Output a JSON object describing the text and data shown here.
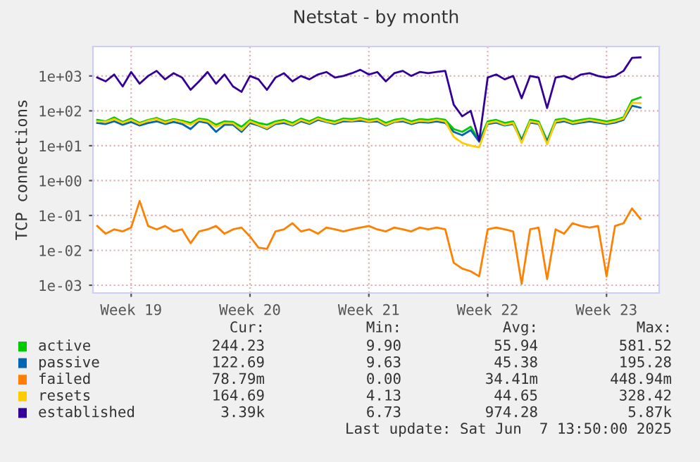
{
  "chart_data": {
    "type": "line",
    "title": "Netstat - by month",
    "ylabel": "TCP connections",
    "log": "y",
    "categories": [
      null,
      null,
      null,
      null,
      "Week 19",
      null,
      null,
      null,
      null,
      null,
      null,
      null,
      null,
      null,
      null,
      null,
      null,
      null,
      "Week 20",
      null,
      null,
      null,
      null,
      null,
      null,
      null,
      null,
      null,
      null,
      null,
      null,
      null,
      "Week 21",
      null,
      null,
      null,
      null,
      null,
      null,
      null,
      null,
      null,
      null,
      null,
      null,
      null,
      "Week 22",
      null,
      null,
      null,
      null,
      null,
      null,
      null,
      null,
      null,
      null,
      null,
      null,
      null,
      "Week 23",
      null,
      null,
      null,
      null
    ],
    "ylim": [
      0.0006,
      7000
    ],
    "yticks": [
      {
        "value": 0.001,
        "label": "1e-03"
      },
      {
        "value": 0.01,
        "label": "1e-02"
      },
      {
        "value": 0.1,
        "label": "1e-01"
      },
      {
        "value": 1,
        "label": "1e+00"
      },
      {
        "value": 10,
        "label": "1e+01"
      },
      {
        "value": 100,
        "label": "1e+02"
      },
      {
        "value": 1000,
        "label": "1e+03"
      }
    ],
    "grid": true,
    "legend": "bottom",
    "series": [
      {
        "name": "active",
        "color": "#00cc00",
        "values": [
          55,
          50,
          65,
          48,
          60,
          45,
          55,
          62,
          50,
          58,
          52,
          45,
          60,
          55,
          40,
          50,
          48,
          35,
          55,
          45,
          40,
          50,
          55,
          45,
          60,
          50,
          65,
          55,
          50,
          60,
          58,
          62,
          55,
          60,
          45,
          55,
          60,
          50,
          58,
          55,
          60,
          55,
          30,
          25,
          35,
          14,
          50,
          55,
          45,
          50,
          15,
          55,
          50,
          14,
          55,
          60,
          50,
          55,
          60,
          55,
          50,
          55,
          65,
          200,
          244
        ]
      },
      {
        "name": "passive",
        "color": "#0066b3",
        "values": [
          45,
          42,
          50,
          40,
          48,
          38,
          45,
          50,
          42,
          48,
          42,
          30,
          50,
          45,
          25,
          40,
          40,
          25,
          45,
          38,
          30,
          42,
          45,
          38,
          50,
          42,
          55,
          48,
          42,
          50,
          50,
          52,
          48,
          50,
          38,
          48,
          50,
          42,
          48,
          46,
          50,
          45,
          25,
          20,
          28,
          13,
          42,
          46,
          38,
          42,
          14,
          46,
          42,
          13,
          46,
          50,
          42,
          46,
          50,
          46,
          42,
          46,
          55,
          140,
          123
        ]
      },
      {
        "name": "failed",
        "color": "#ff8000",
        "values": [
          0.05,
          0.03,
          0.04,
          0.035,
          0.045,
          0.26,
          0.05,
          0.04,
          0.05,
          0.035,
          0.04,
          0.016,
          0.035,
          0.04,
          0.05,
          0.03,
          0.04,
          0.045,
          0.025,
          0.012,
          0.011,
          0.035,
          0.04,
          0.06,
          0.035,
          0.04,
          0.03,
          0.045,
          0.04,
          0.035,
          0.04,
          0.045,
          0.05,
          0.04,
          0.035,
          0.045,
          0.04,
          0.035,
          0.045,
          0.04,
          0.045,
          0.04,
          0.0044,
          0.003,
          0.0025,
          0.0018,
          0.04,
          0.045,
          0.04,
          0.035,
          0.0011,
          0.04,
          0.045,
          0.0015,
          0.04,
          0.03,
          0.06,
          0.05,
          0.045,
          0.05,
          0.0018,
          0.05,
          0.06,
          0.16,
          0.08
        ]
      },
      {
        "name": "resets",
        "color": "#ffcc00",
        "values": [
          50,
          48,
          58,
          45,
          55,
          42,
          52,
          58,
          46,
          55,
          48,
          40,
          55,
          50,
          35,
          45,
          44,
          28,
          50,
          40,
          32,
          45,
          50,
          40,
          55,
          45,
          60,
          50,
          45,
          55,
          52,
          58,
          50,
          55,
          40,
          50,
          55,
          45,
          52,
          50,
          55,
          50,
          18,
          12,
          10,
          9,
          45,
          50,
          40,
          45,
          12,
          50,
          45,
          11,
          50,
          55,
          45,
          50,
          55,
          50,
          45,
          50,
          60,
          170,
          165
        ]
      },
      {
        "name": "established",
        "color": "#330099",
        "values": [
          900,
          700,
          1100,
          500,
          1300,
          600,
          1000,
          1400,
          800,
          1200,
          900,
          400,
          700,
          1300,
          600,
          1100,
          500,
          350,
          1000,
          800,
          400,
          900,
          1200,
          700,
          1000,
          800,
          1100,
          1300,
          900,
          1000,
          1200,
          1500,
          1100,
          1300,
          700,
          1200,
          1400,
          1000,
          1300,
          1200,
          1300,
          1400,
          150,
          70,
          100,
          14,
          900,
          1100,
          800,
          1000,
          230,
          1000,
          900,
          120,
          900,
          1000,
          800,
          1100,
          1200,
          1000,
          900,
          1000,
          1400,
          3300,
          3400
        ]
      }
    ],
    "annotations": [
      "Cur:",
      "Min:",
      "Avg:",
      "Max:",
      "244.23",
      "9.90",
      "55.94",
      "581.52",
      "122.69",
      "9.63",
      "45.38",
      "195.28",
      "78.79m",
      "0.00",
      "34.41m",
      "448.94m",
      "164.69",
      "4.13",
      "44.65",
      "328.42",
      "3.39k",
      "6.73",
      "974.28",
      "5.87k",
      "Last update: Sat Jun  7 13:50:00 2025"
    ]
  }
}
